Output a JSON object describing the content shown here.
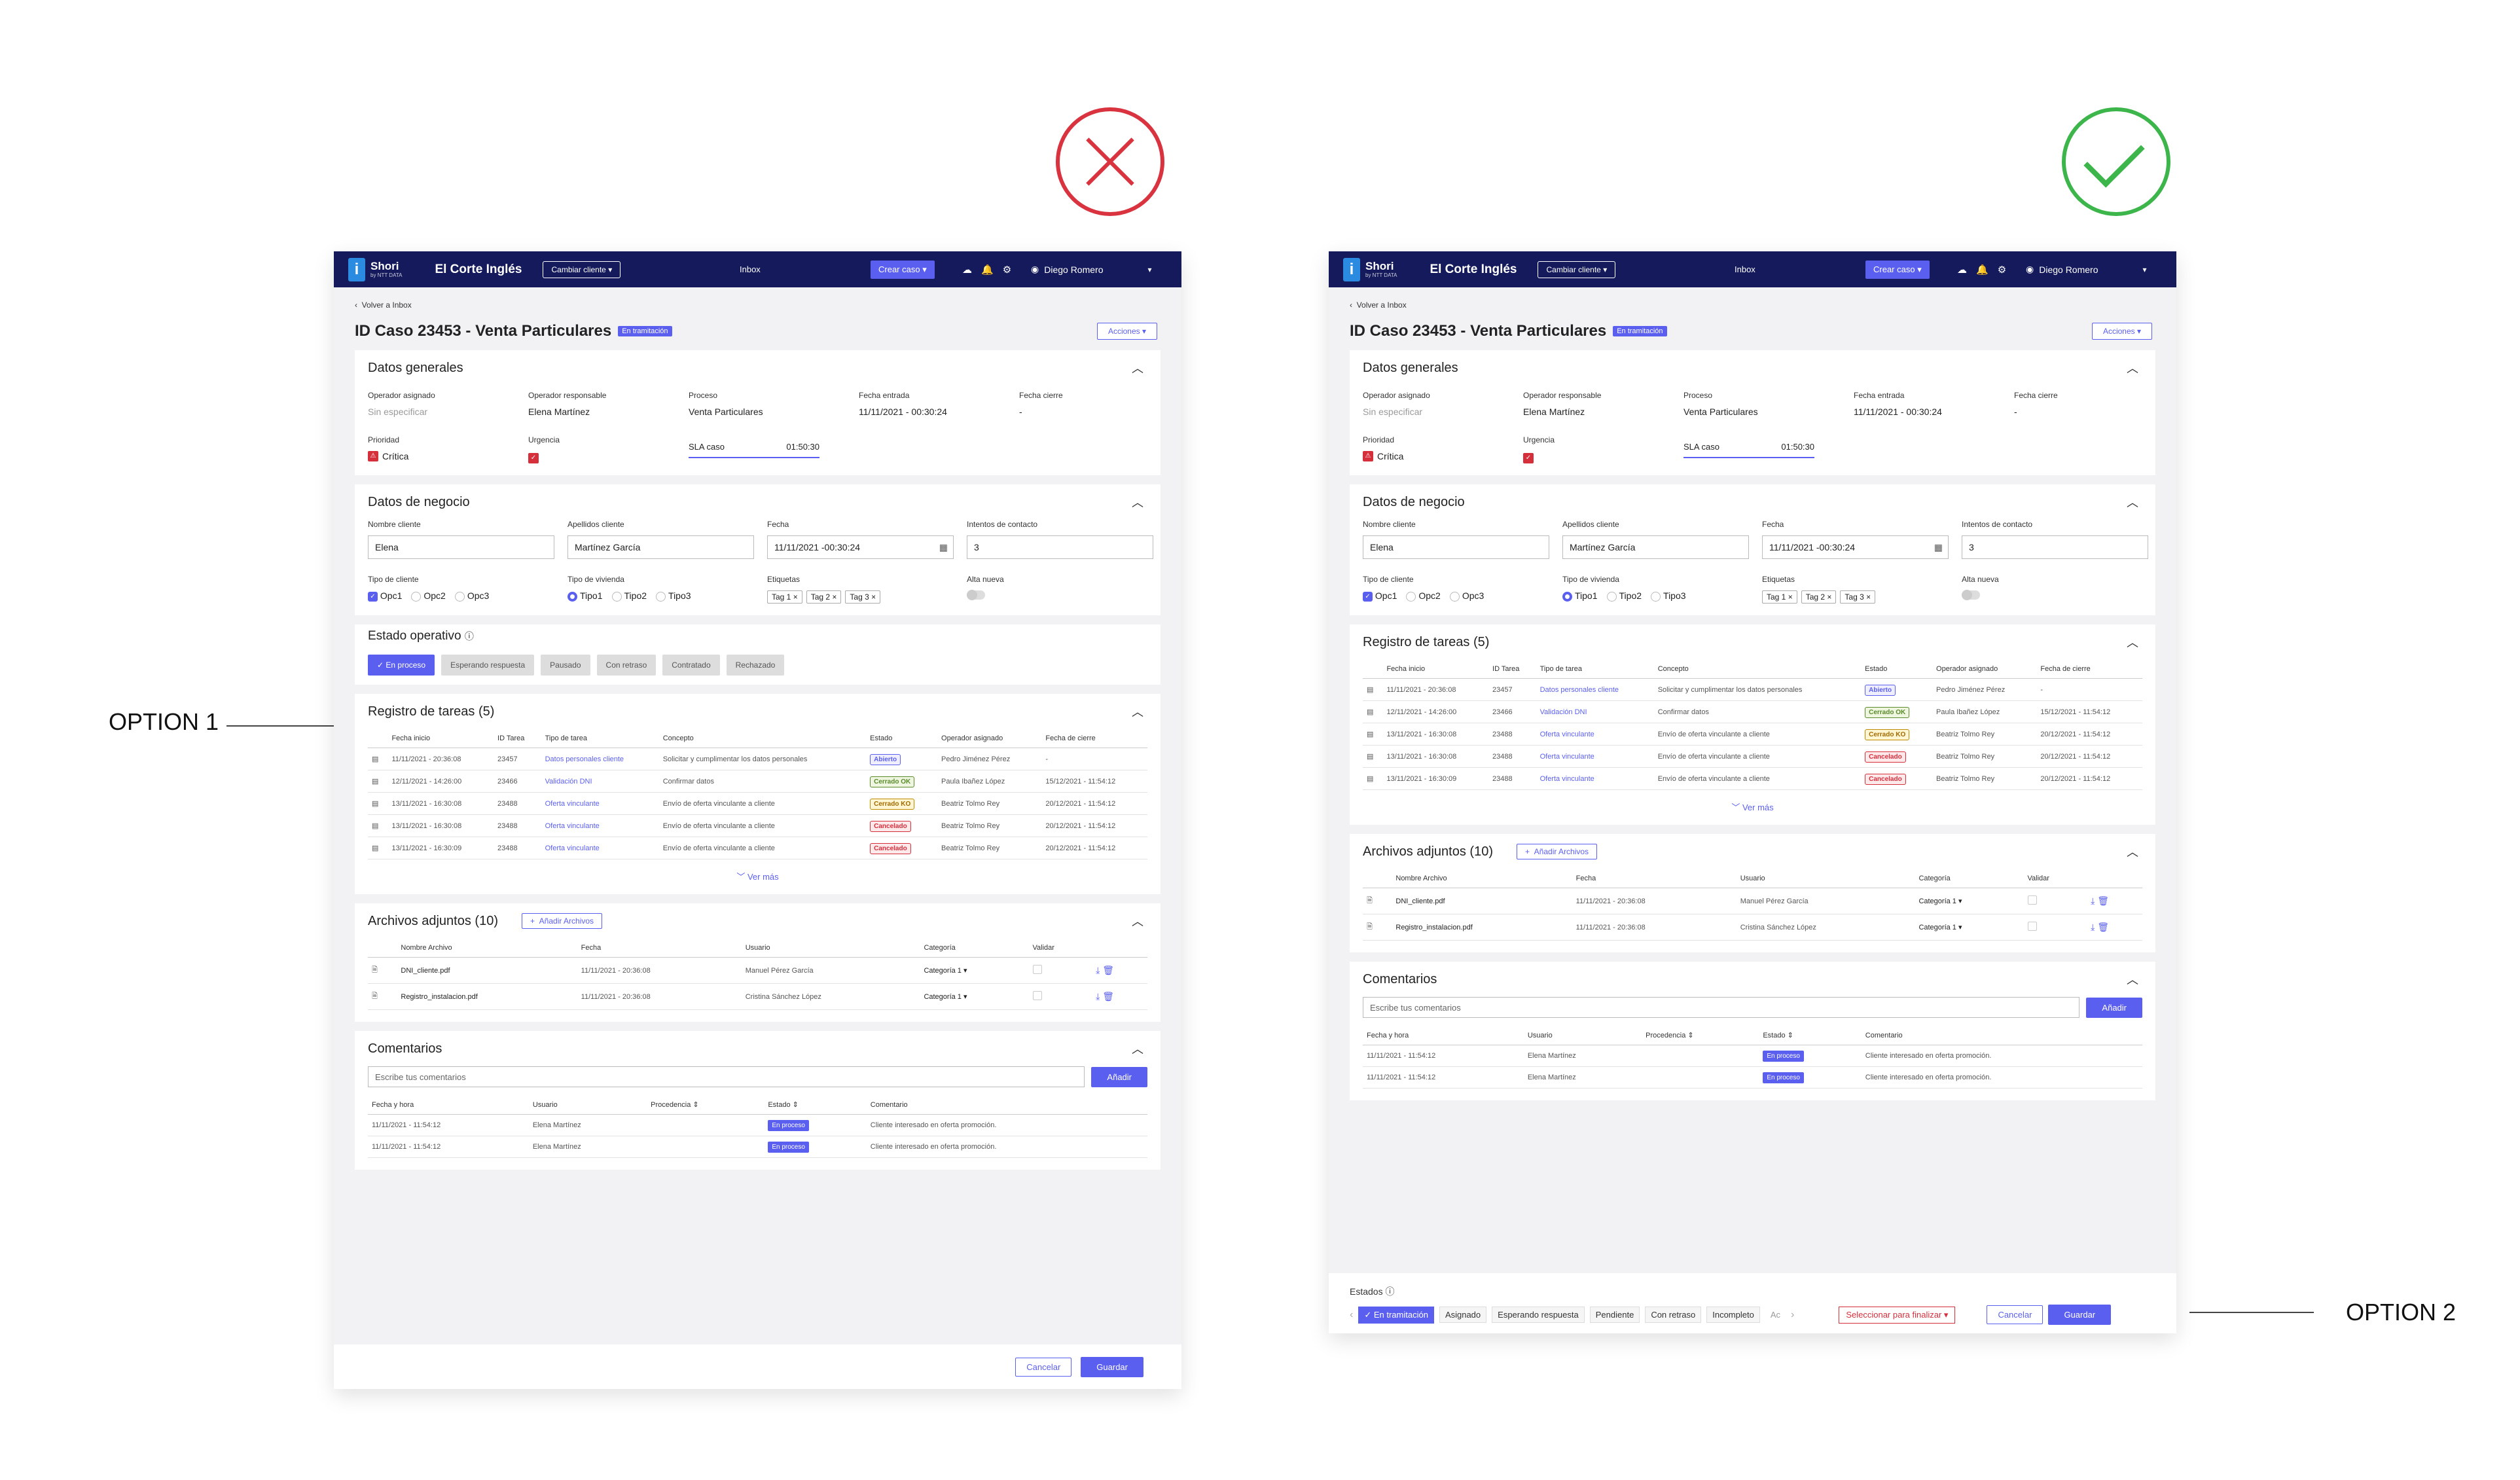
{
  "annotations": {
    "option1": "OPTION 1",
    "option2": "OPTION 2"
  },
  "topbar": {
    "logo_name": "Shori",
    "logo_sub": "by NTT DATA",
    "brand": "El Corte Inglés",
    "change_client": "Cambiar cliente",
    "inbox": "Inbox",
    "create_case": "Crear caso",
    "user": "Diego Romero"
  },
  "page": {
    "back": "Volver a Inbox",
    "title": "ID Caso 23453 - Venta Particulares",
    "status": "En tramitación",
    "actions": "Acciones"
  },
  "general": {
    "title": "Datos generales",
    "fields": [
      {
        "label": "Operador asignado",
        "value": "Sin especificar"
      },
      {
        "label": "Operador responsable",
        "value": "Elena Martínez"
      },
      {
        "label": "Proceso",
        "value": "Venta Particulares"
      },
      {
        "label": "Fecha entrada",
        "value": "11/11/2021 - 00:30:24"
      },
      {
        "label": "Fecha cierre",
        "value": "-"
      }
    ],
    "priority_label": "Prioridad",
    "priority_value": "Crítica",
    "urgency_label": "Urgencia",
    "sla_label": "SLA caso",
    "sla_value": "01:50:30"
  },
  "business": {
    "title": "Datos de negocio",
    "fields": [
      {
        "label": "Nombre cliente",
        "value": "Elena"
      },
      {
        "label": "Apellidos cliente",
        "value": "Martínez García"
      },
      {
        "label": "Fecha",
        "value": "11/11/2021 -00:30:24"
      },
      {
        "label": "Intentos de contacto",
        "value": "3"
      }
    ],
    "client_type_label": "Tipo de cliente",
    "client_types": [
      "Opc1",
      "Opc2",
      "Opc3"
    ],
    "housing_label": "Tipo de vivienda",
    "housing": [
      "Tipo1",
      "Tipo2",
      "Tipo3"
    ],
    "tags_label": "Etiquetas",
    "tags": [
      "Tag 1",
      "Tag 2",
      "Tag 3"
    ],
    "new_label": "Alta nueva"
  },
  "estado_operativo": {
    "title": "Estado operativo",
    "states": [
      "En proceso",
      "Esperando respuesta",
      "Pausado",
      "Con retraso",
      "Contratado",
      "Rechazado"
    ]
  },
  "tasks": {
    "title": "Registro de tareas (5)",
    "headers": [
      "Fecha inicio",
      "ID Tarea",
      "Tipo de tarea",
      "Concepto",
      "Estado",
      "Operador asignado",
      "Fecha de cierre"
    ],
    "rows": [
      {
        "date": "11/11/2021 - 20:36:08",
        "id": "23457",
        "type": "Datos personales cliente",
        "concept": "Solicitar y cumplimentar los datos personales",
        "status": "Abierto",
        "cls": "p-abierto",
        "op": "Pedro Jiménez Pérez",
        "close": "-"
      },
      {
        "date": "12/11/2021 - 14:26:00",
        "id": "23466",
        "type": "Validación DNI",
        "concept": "Confirmar datos",
        "status": "Cerrado OK",
        "cls": "p-ok",
        "op": "Paula Ibañez López",
        "close": "15/12/2021 - 11:54:12"
      },
      {
        "date": "13/11/2021 - 16:30:08",
        "id": "23488",
        "type": "Oferta vinculante",
        "concept": "Envío de oferta vinculante a cliente",
        "status": "Cerrado KO",
        "cls": "p-ko",
        "op": "Beatriz Tolmo Rey",
        "close": "20/12/2021 - 11:54:12"
      },
      {
        "date": "13/11/2021 - 16:30:08",
        "id": "23488",
        "type": "Oferta vinculante",
        "concept": "Envío de oferta vinculante a cliente",
        "status": "Cancelado",
        "cls": "p-canc",
        "op": "Beatriz Tolmo Rey",
        "close": "20/12/2021 - 11:54:12"
      },
      {
        "date": "13/11/2021 - 16:30:09",
        "id": "23488",
        "type": "Oferta vinculante",
        "concept": "Envío de oferta vinculante a cliente",
        "status": "Cancelado",
        "cls": "p-canc",
        "op": "Beatriz Tolmo Rey",
        "close": "20/12/2021 - 11:54:12"
      }
    ],
    "more": "Ver más"
  },
  "files": {
    "title": "Archivos adjuntos (10)",
    "add": "Añadir Archivos",
    "headers": [
      "Nombre Archivo",
      "Fecha",
      "Usuario",
      "Categoría",
      "Validar"
    ],
    "rows": [
      {
        "name": "DNI_cliente.pdf",
        "date": "11/11/2021 - 20:36:08",
        "user": "Manuel Pérez García",
        "cat": "Categoría 1"
      },
      {
        "name": "Registro_instalacion.pdf",
        "date": "11/11/2021 - 20:36:08",
        "user": "Cristina Sánchez López",
        "cat": "Categoría 1"
      }
    ]
  },
  "comments": {
    "title": "Comentarios",
    "placeholder": "Escribe tus comentarios",
    "add": "Añadir",
    "headers": [
      "Fecha y hora",
      "Usuario",
      "Procedencia",
      "Estado",
      "Comentario"
    ],
    "rows": [
      {
        "date": "11/11/2021 - 11:54:12",
        "user": "Elena Martínez",
        "proc": "",
        "status": "En proceso",
        "text": "Cliente interesado en oferta promoción."
      },
      {
        "date": "11/11/2021 - 11:54:12",
        "user": "Elena Martínez",
        "proc": "",
        "status": "En proceso",
        "text": "Cliente interesado en oferta promoción."
      }
    ]
  },
  "footer": {
    "cancel": "Cancelar",
    "save": "Guardar",
    "states_label": "Estados",
    "states": [
      "En tramitación",
      "Asignado",
      "Esperando respuesta",
      "Pendiente",
      "Con retraso",
      "Incompleto",
      "Ac"
    ],
    "finalize": "Seleccionar para finalizar"
  }
}
